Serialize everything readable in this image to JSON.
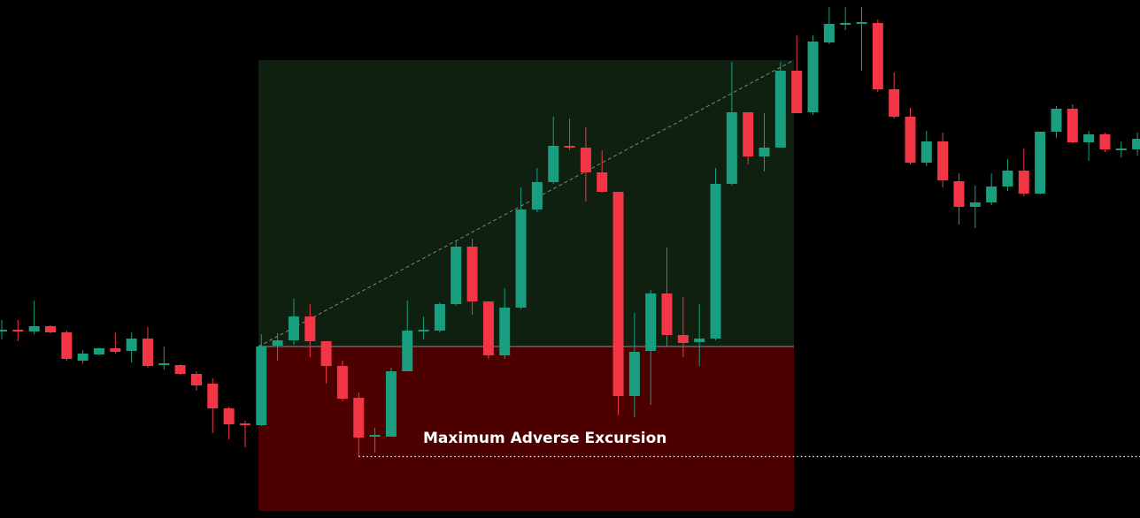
{
  "chart_data": {
    "type": "candlestick",
    "annotation": "Maximum Adverse Excursion",
    "up_color": "#1a9e80",
    "down_color": "#f23645",
    "ylim": [
      0,
      586
    ],
    "open": [
      211,
      213,
      211,
      217,
      210,
      178,
      185,
      192,
      189,
      203,
      173,
      173,
      163,
      152,
      124,
      107,
      105,
      195,
      201,
      228,
      200,
      172,
      136,
      92,
      92,
      166,
      211,
      212,
      242,
      307,
      245,
      184,
      238,
      349,
      380,
      421,
      419,
      391,
      369,
      138,
      189,
      254,
      207,
      199,
      203,
      378,
      459,
      409,
      419,
      506,
      459,
      538,
      558,
      559,
      560,
      485,
      454,
      402,
      426,
      381,
      352,
      357,
      375,
      393,
      367,
      437,
      463,
      425,
      434,
      416,
      417
    ],
    "high": [
      224,
      224,
      246,
      218,
      212,
      190,
      193,
      210,
      210,
      216,
      194,
      174,
      166,
      158,
      126,
      110,
      208,
      209,
      248,
      242,
      200,
      178,
      142,
      102,
      170,
      246,
      228,
      244,
      314,
      316,
      245,
      260,
      374,
      396,
      454,
      452,
      442,
      416,
      369,
      232,
      258,
      306,
      250,
      242,
      396,
      516,
      459,
      458,
      516,
      546,
      546,
      578,
      578,
      578,
      564,
      504,
      464,
      438,
      436,
      390,
      376,
      390,
      406,
      418,
      437,
      466,
      468,
      438,
      436,
      426,
      436
    ],
    "low": [
      202,
      200,
      208,
      209,
      178,
      175,
      184,
      186,
      176,
      170,
      168,
      162,
      144,
      96,
      89,
      80,
      104,
      178,
      196,
      182,
      152,
      132,
      70,
      74,
      92,
      166,
      202,
      210,
      240,
      230,
      180,
      180,
      236,
      346,
      378,
      416,
      358,
      368,
      116,
      114,
      128,
      194,
      182,
      172,
      201,
      376,
      400,
      392,
      419,
      458,
      456,
      536,
      552,
      506,
      482,
      452,
      400,
      398,
      374,
      332,
      328,
      354,
      370,
      364,
      366,
      430,
      424,
      404,
      414,
      408,
      410
    ],
    "close": [
      213,
      211,
      217,
      210,
      180,
      186,
      192,
      188,
      203,
      172,
      175,
      163,
      150,
      124,
      106,
      105,
      194,
      201,
      228,
      200,
      172,
      135,
      91,
      94,
      166,
      212,
      213,
      242,
      307,
      245,
      184,
      238,
      349,
      380,
      421,
      419,
      391,
      369,
      138,
      188,
      254,
      207,
      198,
      203,
      378,
      459,
      409,
      419,
      506,
      458,
      539,
      559,
      560,
      561,
      485,
      454,
      402,
      426,
      382,
      352,
      357,
      375,
      393,
      367,
      437,
      463,
      425,
      434,
      417,
      418,
      429
    ]
  }
}
